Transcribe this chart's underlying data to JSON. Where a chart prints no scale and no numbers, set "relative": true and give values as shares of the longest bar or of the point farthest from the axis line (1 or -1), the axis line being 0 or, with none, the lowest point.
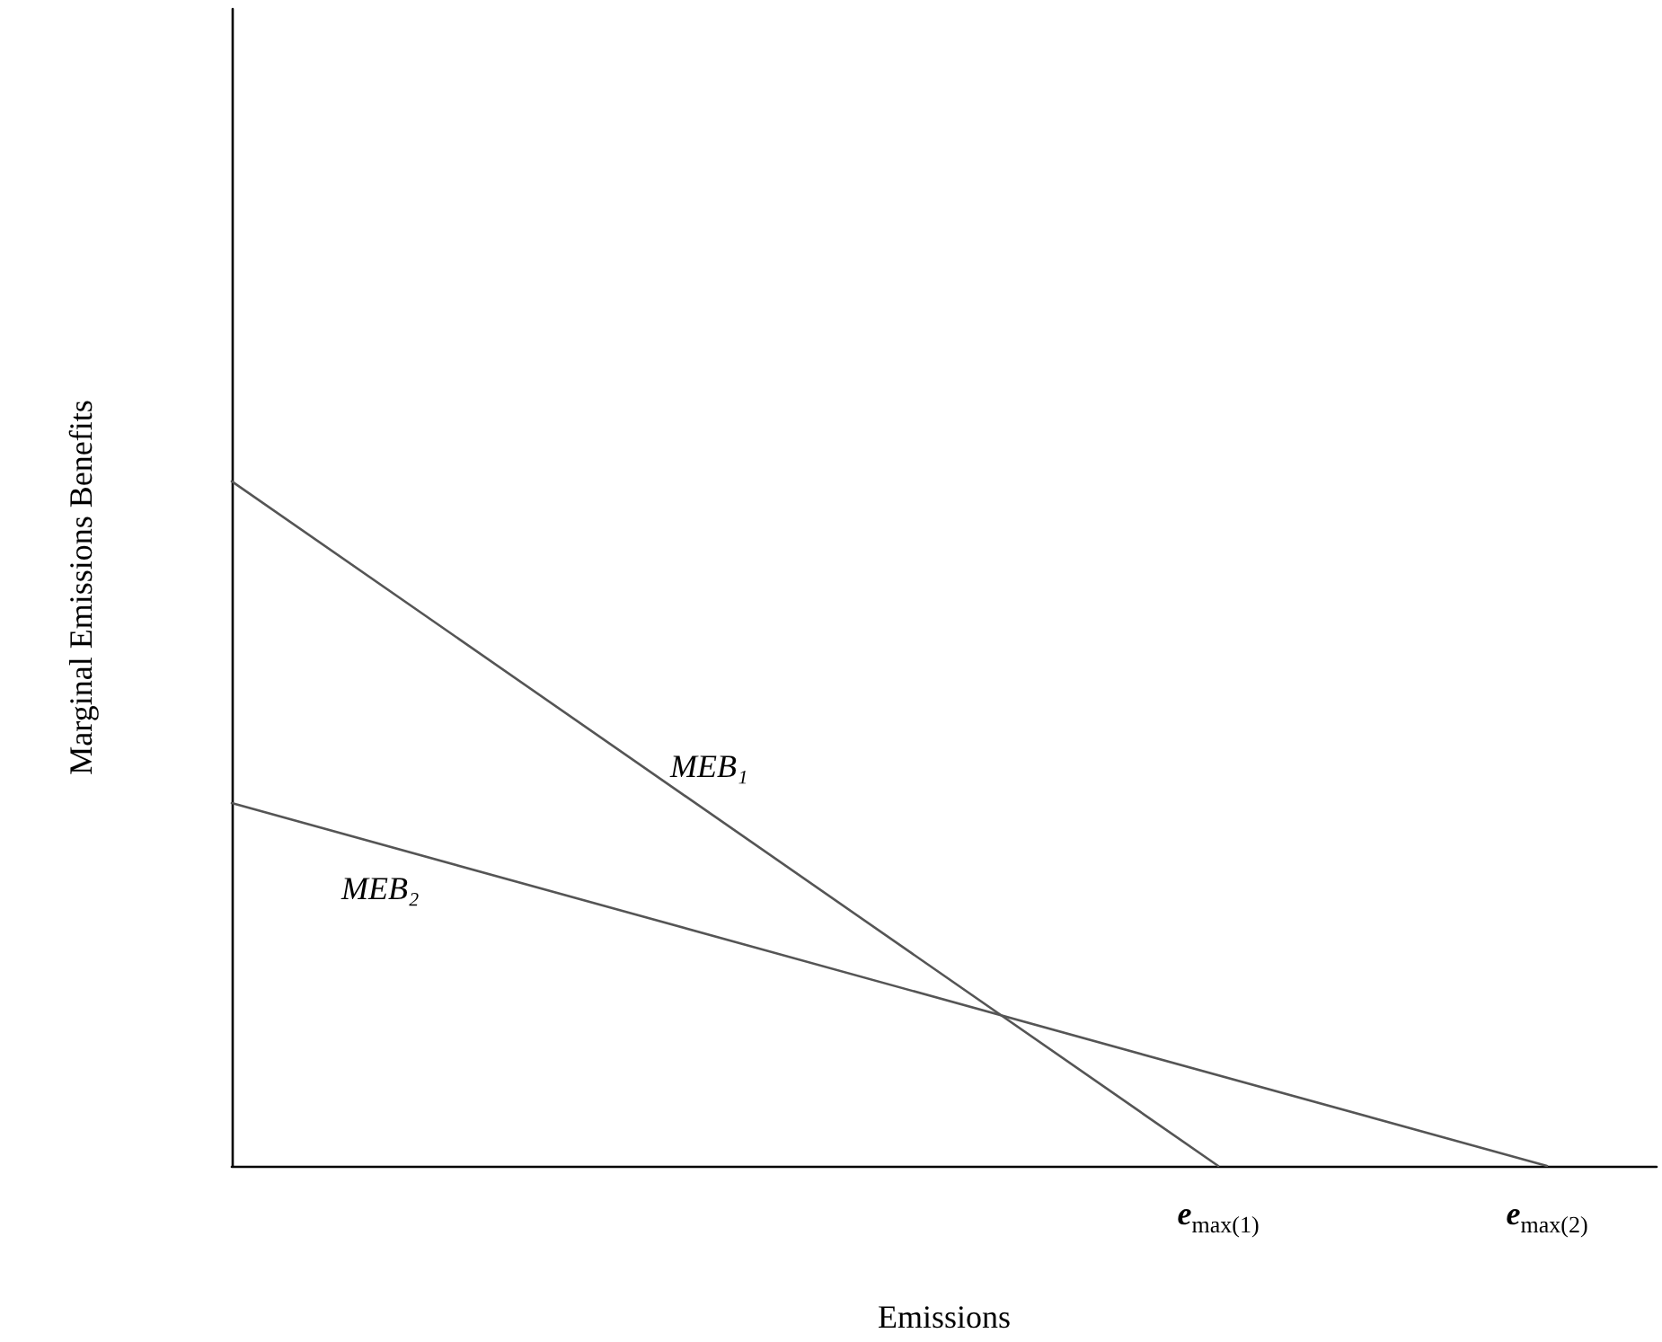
{
  "chart_data": {
    "type": "line",
    "xlabel": "Emissions",
    "ylabel": "Marginal Emissions Benefits",
    "relative": true,
    "categories": [
      null,
      null,
      null,
      null,
      null,
      null,
      null,
      null,
      null,
      "e$_{max(1)}$",
      null,
      null,
      "e$_{max(2)}$",
      null
    ],
    "series": [
      {
        "name": "MEB₁",
        "color": "#555555",
        "values": [
          1,
          null,
          null,
          null,
          null,
          null,
          null,
          null,
          null,
          0,
          null,
          null,
          null,
          null
        ]
      },
      {
        "name": "MEB₂",
        "color": "#555555",
        "values": [
          0.53,
          null,
          null,
          null,
          null,
          null,
          null,
          null,
          null,
          null,
          null,
          null,
          0,
          null
        ]
      }
    ],
    "grid": false,
    "legend": false,
    "marker": "none",
    "line_style": "solid"
  }
}
